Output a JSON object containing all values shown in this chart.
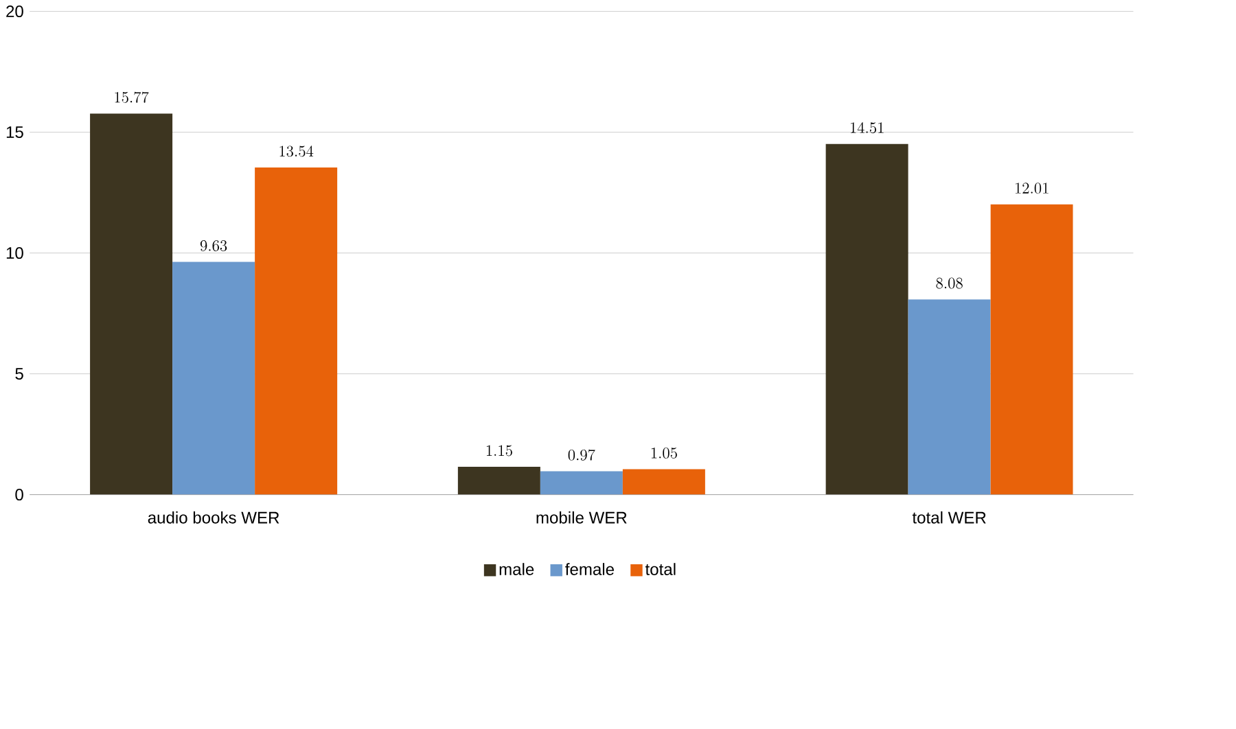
{
  "chart_data": {
    "type": "bar",
    "categories": [
      "audio books WER",
      "mobile WER",
      "total WER"
    ],
    "series": [
      {
        "name": "male",
        "color": "#3d3520",
        "values": [
          15.77,
          1.15,
          14.51
        ]
      },
      {
        "name": "female",
        "color": "#6a98cc",
        "values": [
          9.63,
          0.97,
          8.08
        ]
      },
      {
        "name": "total",
        "color": "#e8620a",
        "values": [
          13.54,
          1.05,
          12.01
        ]
      }
    ],
    "ylim": [
      0,
      20
    ],
    "yticks": [
      0,
      5,
      10,
      15,
      20
    ],
    "grid": "y",
    "legend": "bottom",
    "data_labels": true
  }
}
